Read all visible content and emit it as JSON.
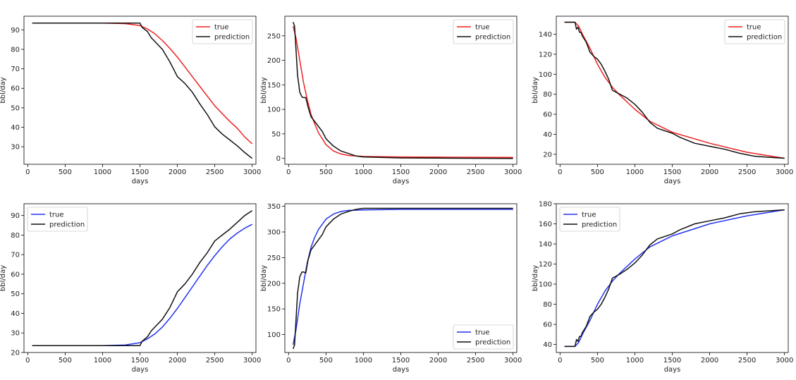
{
  "chart_data": [
    {
      "type": "line",
      "xlabel": "days",
      "ylabel": "bbl/day",
      "xlim": [
        -50,
        3050
      ],
      "ylim": [
        21,
        97
      ],
      "xticks": [
        0,
        500,
        1000,
        1500,
        2000,
        2500,
        3000
      ],
      "yticks": [
        30,
        40,
        50,
        60,
        70,
        80,
        90
      ],
      "legend": "top-right",
      "series": [
        {
          "name": "true",
          "color": "#ee2222",
          "x": [
            60,
            500,
            1000,
            1300,
            1500,
            1600,
            1700,
            1800,
            1900,
            2000,
            2100,
            2200,
            2300,
            2400,
            2500,
            2600,
            2700,
            2800,
            2900,
            3000
          ],
          "y": [
            93.5,
            93.5,
            93.5,
            93.2,
            92.2,
            90.5,
            88,
            84.5,
            80.5,
            76,
            71,
            66,
            61,
            56,
            51,
            47,
            43,
            39.5,
            35,
            31.5
          ]
        },
        {
          "name": "prediction",
          "color": "#111111",
          "x": [
            60,
            500,
            1000,
            1500,
            1530,
            1600,
            1650,
            1700,
            1800,
            1900,
            2000,
            2100,
            2200,
            2300,
            2400,
            2500,
            2600,
            2700,
            2800,
            2900,
            3000
          ],
          "y": [
            93.5,
            93.5,
            93.5,
            93.5,
            91.2,
            89.2,
            86,
            84,
            80,
            73.5,
            66,
            62.5,
            58,
            52,
            46.5,
            40.2,
            36.5,
            33.5,
            30.5,
            27,
            24
          ]
        }
      ]
    },
    {
      "type": "line",
      "xlabel": "days",
      "ylabel": "bbl/day",
      "xlim": [
        -50,
        3050
      ],
      "ylim": [
        -12,
        290
      ],
      "xticks": [
        0,
        500,
        1000,
        1500,
        2000,
        2500,
        3000
      ],
      "yticks": [
        0,
        50,
        100,
        150,
        200,
        250
      ],
      "legend": "top-right",
      "series": [
        {
          "name": "true",
          "color": "#ee2222",
          "x": [
            60,
            100,
            150,
            200,
            250,
            300,
            350,
            400,
            500,
            600,
            700,
            800,
            1000,
            1500,
            2000,
            3000
          ],
          "y": [
            270,
            245,
            200,
            155,
            120,
            90,
            70,
            52,
            28,
            15,
            9,
            6,
            4,
            3,
            2.5,
            2
          ]
        },
        {
          "name": "prediction",
          "color": "#111111",
          "x": [
            60,
            80,
            100,
            120,
            150,
            180,
            200,
            230,
            260,
            300,
            350,
            400,
            450,
            500,
            600,
            700,
            800,
            900,
            1000,
            1500,
            2000,
            3000
          ],
          "y": [
            278,
            270,
            220,
            170,
            135,
            125,
            124,
            124,
            105,
            85,
            75,
            65,
            55,
            40,
            25,
            15,
            10,
            5,
            3,
            1,
            0.5,
            0
          ]
        }
      ]
    },
    {
      "type": "line",
      "xlabel": "days",
      "ylabel": "bbl/day",
      "xlim": [
        -50,
        3050
      ],
      "ylim": [
        10,
        158
      ],
      "xticks": [
        0,
        500,
        1000,
        1500,
        2000,
        2500,
        3000
      ],
      "yticks": [
        20,
        40,
        60,
        80,
        100,
        120,
        140
      ],
      "legend": "top-right",
      "series": [
        {
          "name": "true",
          "color": "#ee2222",
          "x": [
            60,
            200,
            250,
            300,
            400,
            500,
            600,
            700,
            800,
            900,
            1000,
            1200,
            1500,
            2000,
            2500,
            3000
          ],
          "y": [
            152,
            152,
            148,
            140,
            126,
            110,
            97,
            87,
            79,
            72,
            65,
            53,
            42,
            31,
            22,
            16
          ]
        },
        {
          "name": "prediction",
          "color": "#111111",
          "x": [
            60,
            200,
            220,
            240,
            260,
            280,
            300,
            350,
            400,
            450,
            500,
            550,
            600,
            650,
            700,
            750,
            800,
            900,
            1000,
            1100,
            1200,
            1300,
            1500,
            1600,
            1800,
            2000,
            2200,
            2400,
            2600,
            2800,
            3000
          ],
          "y": [
            152,
            152,
            145,
            147,
            142,
            142,
            138,
            132,
            122,
            118,
            115,
            110,
            103,
            95,
            84,
            82,
            80,
            76,
            70,
            62,
            52,
            46,
            41,
            37,
            31,
            28,
            25,
            21,
            18,
            17,
            16
          ]
        }
      ]
    },
    {
      "type": "line",
      "xlabel": "days",
      "ylabel": "bbl/day",
      "xlim": [
        -50,
        3050
      ],
      "ylim": [
        20,
        96
      ],
      "xticks": [
        0,
        500,
        1000,
        1500,
        2000,
        2500,
        3000
      ],
      "yticks": [
        20,
        30,
        40,
        50,
        60,
        70,
        80,
        90
      ],
      "legend": "top-left",
      "series": [
        {
          "name": "true",
          "color": "#2233ee",
          "x": [
            60,
            500,
            1000,
            1300,
            1500,
            1600,
            1700,
            1800,
            1900,
            2000,
            2100,
            2200,
            2300,
            2400,
            2500,
            2600,
            2700,
            2800,
            2900,
            3000
          ],
          "y": [
            23.5,
            23.5,
            23.5,
            23.8,
            25,
            27,
            29.5,
            33,
            37.5,
            42.5,
            48,
            53.5,
            59,
            64.5,
            69.5,
            74,
            78,
            81,
            83.5,
            85.5
          ]
        },
        {
          "name": "prediction",
          "color": "#111111",
          "x": [
            60,
            500,
            1000,
            1500,
            1530,
            1600,
            1650,
            1700,
            1800,
            1900,
            2000,
            2100,
            2200,
            2300,
            2400,
            2500,
            2600,
            2700,
            2800,
            2900,
            3000
          ],
          "y": [
            23.5,
            23.5,
            23.5,
            23.5,
            25.8,
            28,
            31,
            33,
            37,
            43,
            51,
            55,
            60,
            66,
            71,
            77,
            80,
            83,
            86.5,
            90,
            92.5
          ]
        }
      ]
    },
    {
      "type": "line",
      "xlabel": "days",
      "ylabel": "bbl/day",
      "xlim": [
        -50,
        3050
      ],
      "ylim": [
        65,
        355
      ],
      "xticks": [
        0,
        500,
        1000,
        1500,
        2000,
        2500,
        3000
      ],
      "yticks": [
        100,
        150,
        200,
        250,
        300,
        350
      ],
      "legend": "bottom-right",
      "series": [
        {
          "name": "true",
          "color": "#2233ee",
          "x": [
            60,
            100,
            150,
            200,
            250,
            300,
            350,
            400,
            500,
            600,
            700,
            800,
            1000,
            1500,
            2000,
            3000
          ],
          "y": [
            80,
            110,
            160,
            200,
            240,
            270,
            290,
            305,
            325,
            335,
            340,
            342,
            343,
            344,
            344,
            344
          ]
        },
        {
          "name": "prediction",
          "color": "#111111",
          "x": [
            60,
            80,
            100,
            120,
            150,
            180,
            200,
            230,
            260,
            300,
            350,
            400,
            450,
            500,
            600,
            700,
            800,
            900,
            1000,
            1500,
            2000,
            3000
          ],
          "y": [
            72,
            80,
            130,
            180,
            213,
            222,
            222,
            220,
            245,
            265,
            275,
            285,
            295,
            310,
            325,
            335,
            340,
            344,
            346,
            346,
            346,
            346
          ]
        }
      ]
    },
    {
      "type": "line",
      "xlabel": "days",
      "ylabel": "bbl/day",
      "xlim": [
        -50,
        3050
      ],
      "ylim": [
        32,
        180
      ],
      "xticks": [
        0,
        500,
        1000,
        1500,
        2000,
        2500,
        3000
      ],
      "yticks": [
        40,
        60,
        80,
        100,
        120,
        140,
        160,
        180
      ],
      "legend": "top-left",
      "series": [
        {
          "name": "true",
          "color": "#2233ee",
          "x": [
            60,
            200,
            250,
            300,
            400,
            500,
            600,
            700,
            800,
            900,
            1000,
            1200,
            1500,
            2000,
            2500,
            3000
          ],
          "y": [
            38,
            38,
            42,
            50,
            64,
            80,
            93,
            103,
            111,
            118,
            125,
            137,
            148,
            160,
            168,
            174
          ]
        },
        {
          "name": "prediction",
          "color": "#111111",
          "x": [
            60,
            200,
            220,
            240,
            260,
            280,
            300,
            350,
            400,
            450,
            500,
            550,
            600,
            650,
            700,
            750,
            800,
            900,
            1000,
            1100,
            1200,
            1300,
            1500,
            1600,
            1800,
            2000,
            2200,
            2400,
            2600,
            2800,
            3000
          ],
          "y": [
            38,
            38,
            45,
            43,
            48,
            48,
            52,
            58,
            68,
            72,
            75,
            80,
            87,
            95,
            106,
            108,
            110,
            115,
            121,
            129,
            139,
            145,
            150,
            154,
            160,
            163,
            166,
            170,
            172,
            173,
            174
          ]
        }
      ]
    }
  ]
}
